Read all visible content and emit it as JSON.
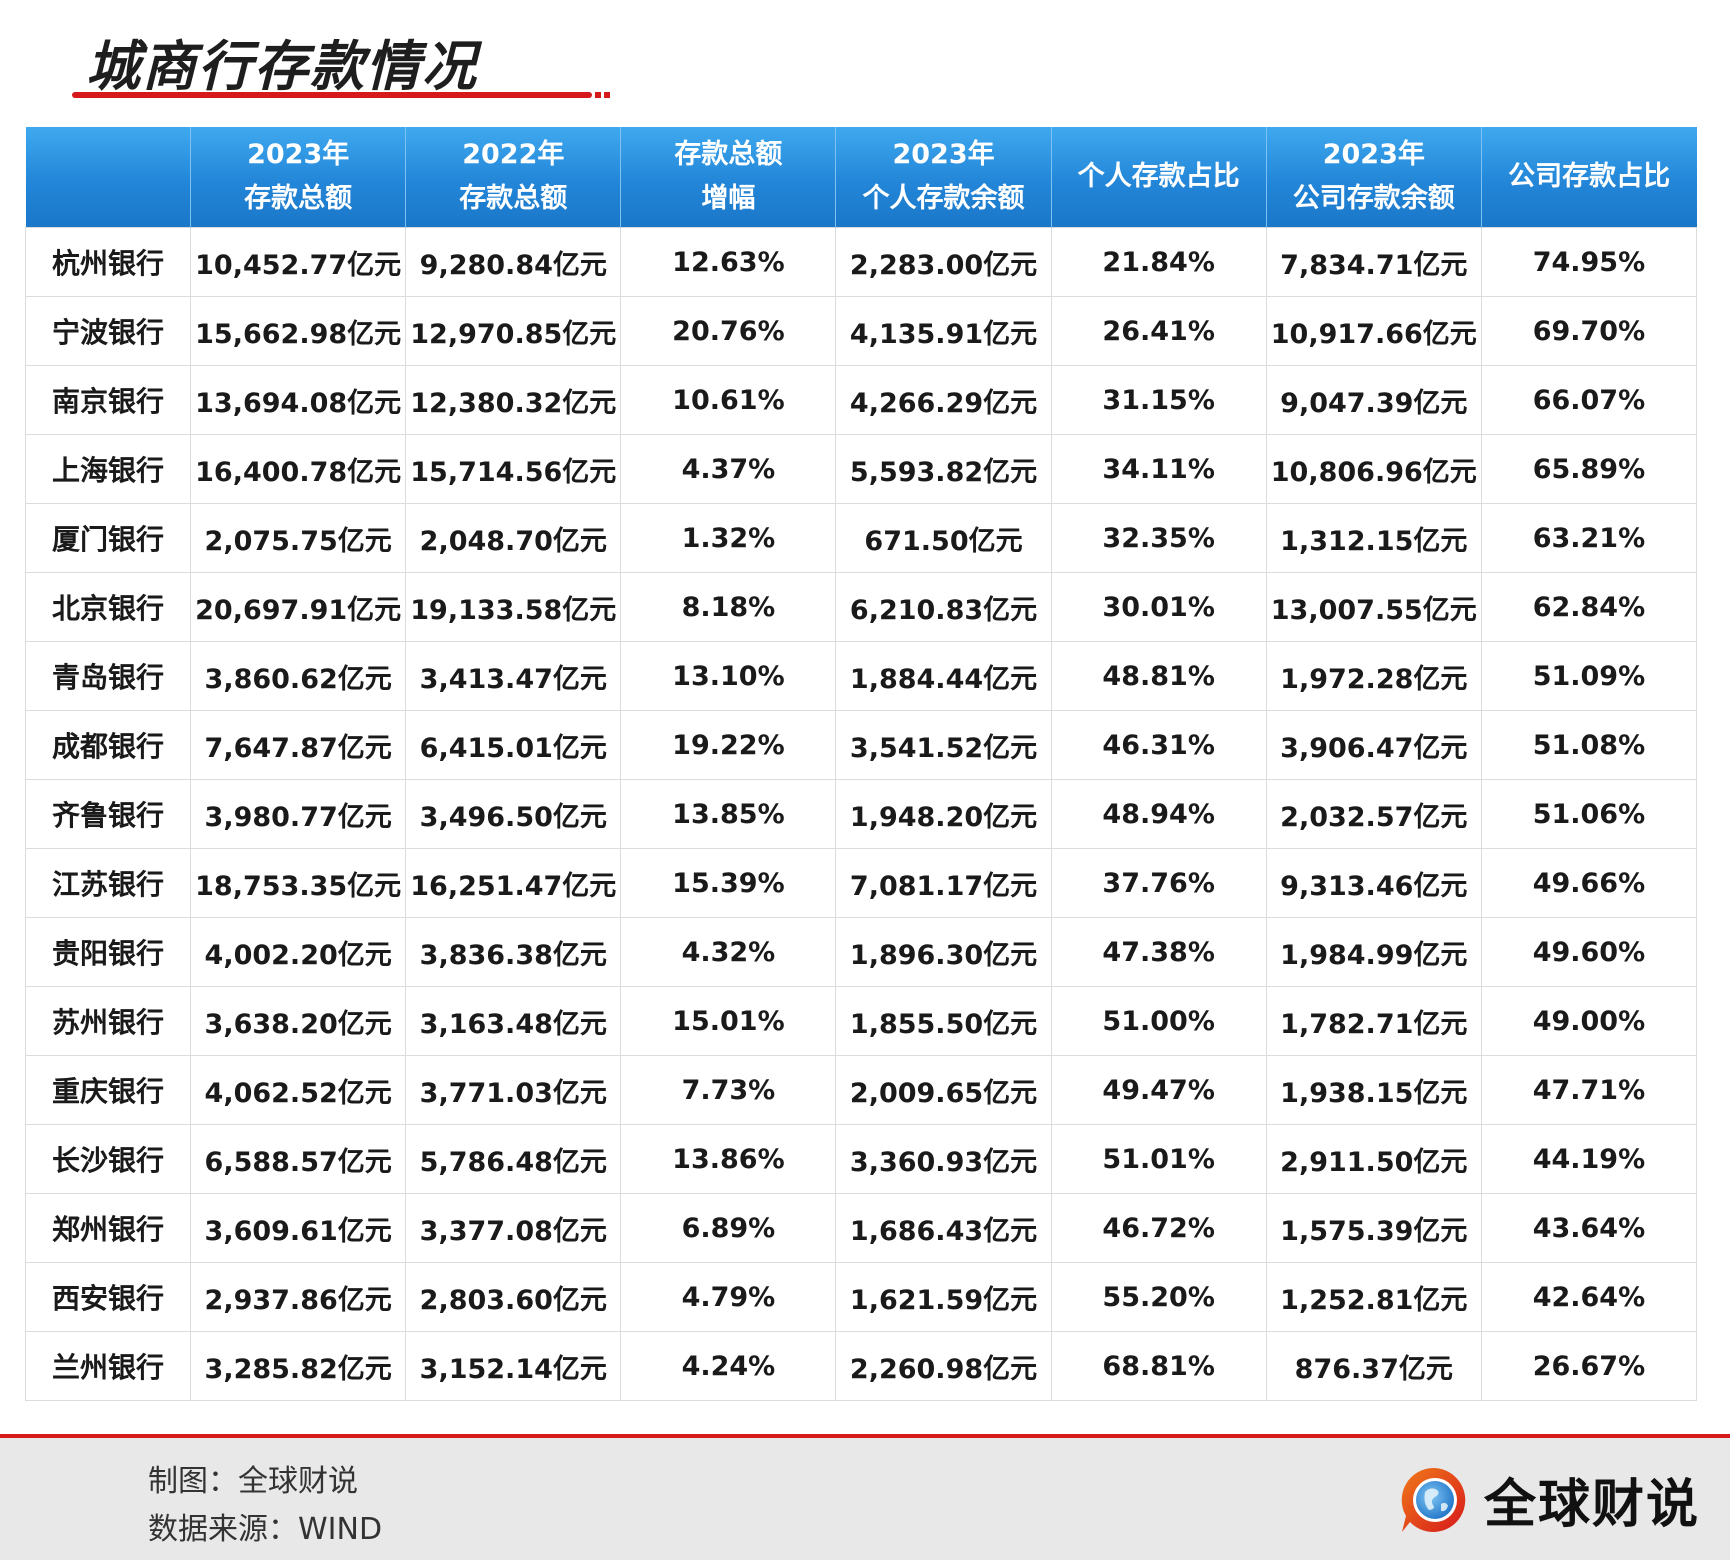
{
  "title": "城商行存款情况",
  "table": {
    "headers": [
      "",
      "2023年\n存款总额",
      "2022年\n存款总额",
      "存款总额\n增幅",
      "2023年\n个人存款余额",
      "个人存款占比",
      "2023年\n公司存款余额",
      "公司存款占比"
    ],
    "rows": [
      [
        "杭州银行",
        "10,452.77亿元",
        "9,280.84亿元",
        "12.63%",
        "2,283.00亿元",
        "21.84%",
        "7,834.71亿元",
        "74.95%"
      ],
      [
        "宁波银行",
        "15,662.98亿元",
        "12,970.85亿元",
        "20.76%",
        "4,135.91亿元",
        "26.41%",
        "10,917.66亿元",
        "69.70%"
      ],
      [
        "南京银行",
        "13,694.08亿元",
        "12,380.32亿元",
        "10.61%",
        "4,266.29亿元",
        "31.15%",
        "9,047.39亿元",
        "66.07%"
      ],
      [
        "上海银行",
        "16,400.78亿元",
        "15,714.56亿元",
        "4.37%",
        "5,593.82亿元",
        "34.11%",
        "10,806.96亿元",
        "65.89%"
      ],
      [
        "厦门银行",
        "2,075.75亿元",
        "2,048.70亿元",
        "1.32%",
        "671.50亿元",
        "32.35%",
        "1,312.15亿元",
        "63.21%"
      ],
      [
        "北京银行",
        "20,697.91亿元",
        "19,133.58亿元",
        "8.18%",
        "6,210.83亿元",
        "30.01%",
        "13,007.55亿元",
        "62.84%"
      ],
      [
        "青岛银行",
        "3,860.62亿元",
        "3,413.47亿元",
        "13.10%",
        "1,884.44亿元",
        "48.81%",
        "1,972.28亿元",
        "51.09%"
      ],
      [
        "成都银行",
        "7,647.87亿元",
        "6,415.01亿元",
        "19.22%",
        "3,541.52亿元",
        "46.31%",
        "3,906.47亿元",
        "51.08%"
      ],
      [
        "齐鲁银行",
        "3,980.77亿元",
        "3,496.50亿元",
        "13.85%",
        "1,948.20亿元",
        "48.94%",
        "2,032.57亿元",
        "51.06%"
      ],
      [
        "江苏银行",
        "18,753.35亿元",
        "16,251.47亿元",
        "15.39%",
        "7,081.17亿元",
        "37.76%",
        "9,313.46亿元",
        "49.66%"
      ],
      [
        "贵阳银行",
        "4,002.20亿元",
        "3,836.38亿元",
        "4.32%",
        "1,896.30亿元",
        "47.38%",
        "1,984.99亿元",
        "49.60%"
      ],
      [
        "苏州银行",
        "3,638.20亿元",
        "3,163.48亿元",
        "15.01%",
        "1,855.50亿元",
        "51.00%",
        "1,782.71亿元",
        "49.00%"
      ],
      [
        "重庆银行",
        "4,062.52亿元",
        "3,771.03亿元",
        "7.73%",
        "2,009.65亿元",
        "49.47%",
        "1,938.15亿元",
        "47.71%"
      ],
      [
        "长沙银行",
        "6,588.57亿元",
        "5,786.48亿元",
        "13.86%",
        "3,360.93亿元",
        "51.01%",
        "2,911.50亿元",
        "44.19%"
      ],
      [
        "郑州银行",
        "3,609.61亿元",
        "3,377.08亿元",
        "6.89%",
        "1,686.43亿元",
        "46.72%",
        "1,575.39亿元",
        "43.64%"
      ],
      [
        "西安银行",
        "2,937.86亿元",
        "2,803.60亿元",
        "4.79%",
        "1,621.59亿元",
        "55.20%",
        "1,252.81亿元",
        "42.64%"
      ],
      [
        "兰州银行",
        "3,285.82亿元",
        "3,152.14亿元",
        "4.24%",
        "2,260.98亿元",
        "68.81%",
        "876.37亿元",
        "26.67%"
      ]
    ]
  },
  "footer": {
    "chart_by": "制图：全球财说",
    "source": "数据来源：WIND"
  },
  "brand": {
    "name": "全球财说",
    "icon": "globe-speech-bubble-icon"
  },
  "colors": {
    "accent_red": "#d6191b",
    "header_blue": "#2386d8",
    "footer_gray": "#e8e8e8"
  }
}
